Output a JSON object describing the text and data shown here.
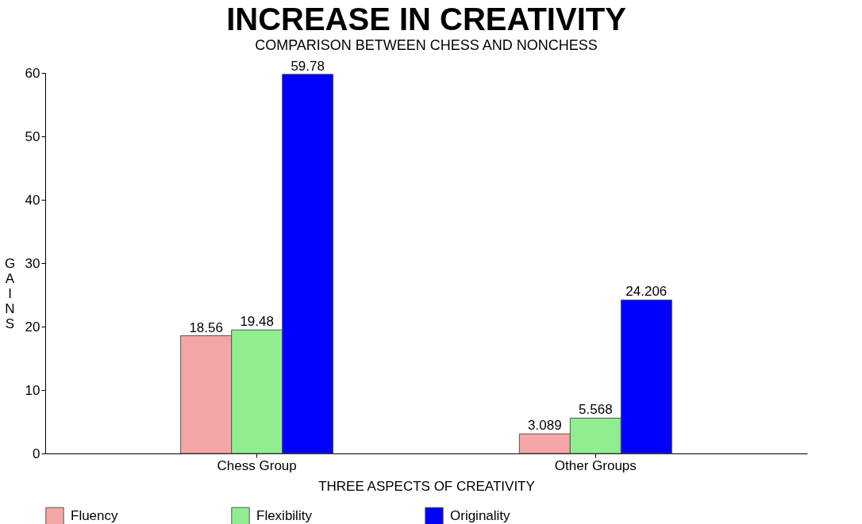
{
  "chart_data": {
    "type": "bar",
    "title": "INCREASE IN CREATIVITY",
    "subtitle": "COMPARISON BETWEEN CHESS AND NONCHESS",
    "xlabel": "THREE ASPECTS OF CREATIVITY",
    "ylabel": "GAINS",
    "categories": [
      "Chess Group",
      "Other Groups"
    ],
    "series": [
      {
        "name": "Fluency",
        "color": "#f4a6a6",
        "values": [
          18.56,
          3.089
        ]
      },
      {
        "name": "Flexibility",
        "color": "#90ee90",
        "values": [
          19.48,
          5.568
        ]
      },
      {
        "name": "Originality",
        "color": "#0000ff",
        "values": [
          59.78,
          24.206
        ]
      }
    ],
    "ylim": [
      0,
      60
    ],
    "yticks": [
      0,
      10,
      20,
      30,
      40,
      50,
      60
    ],
    "grid": false,
    "legend": "bottom",
    "data_labels": true
  }
}
